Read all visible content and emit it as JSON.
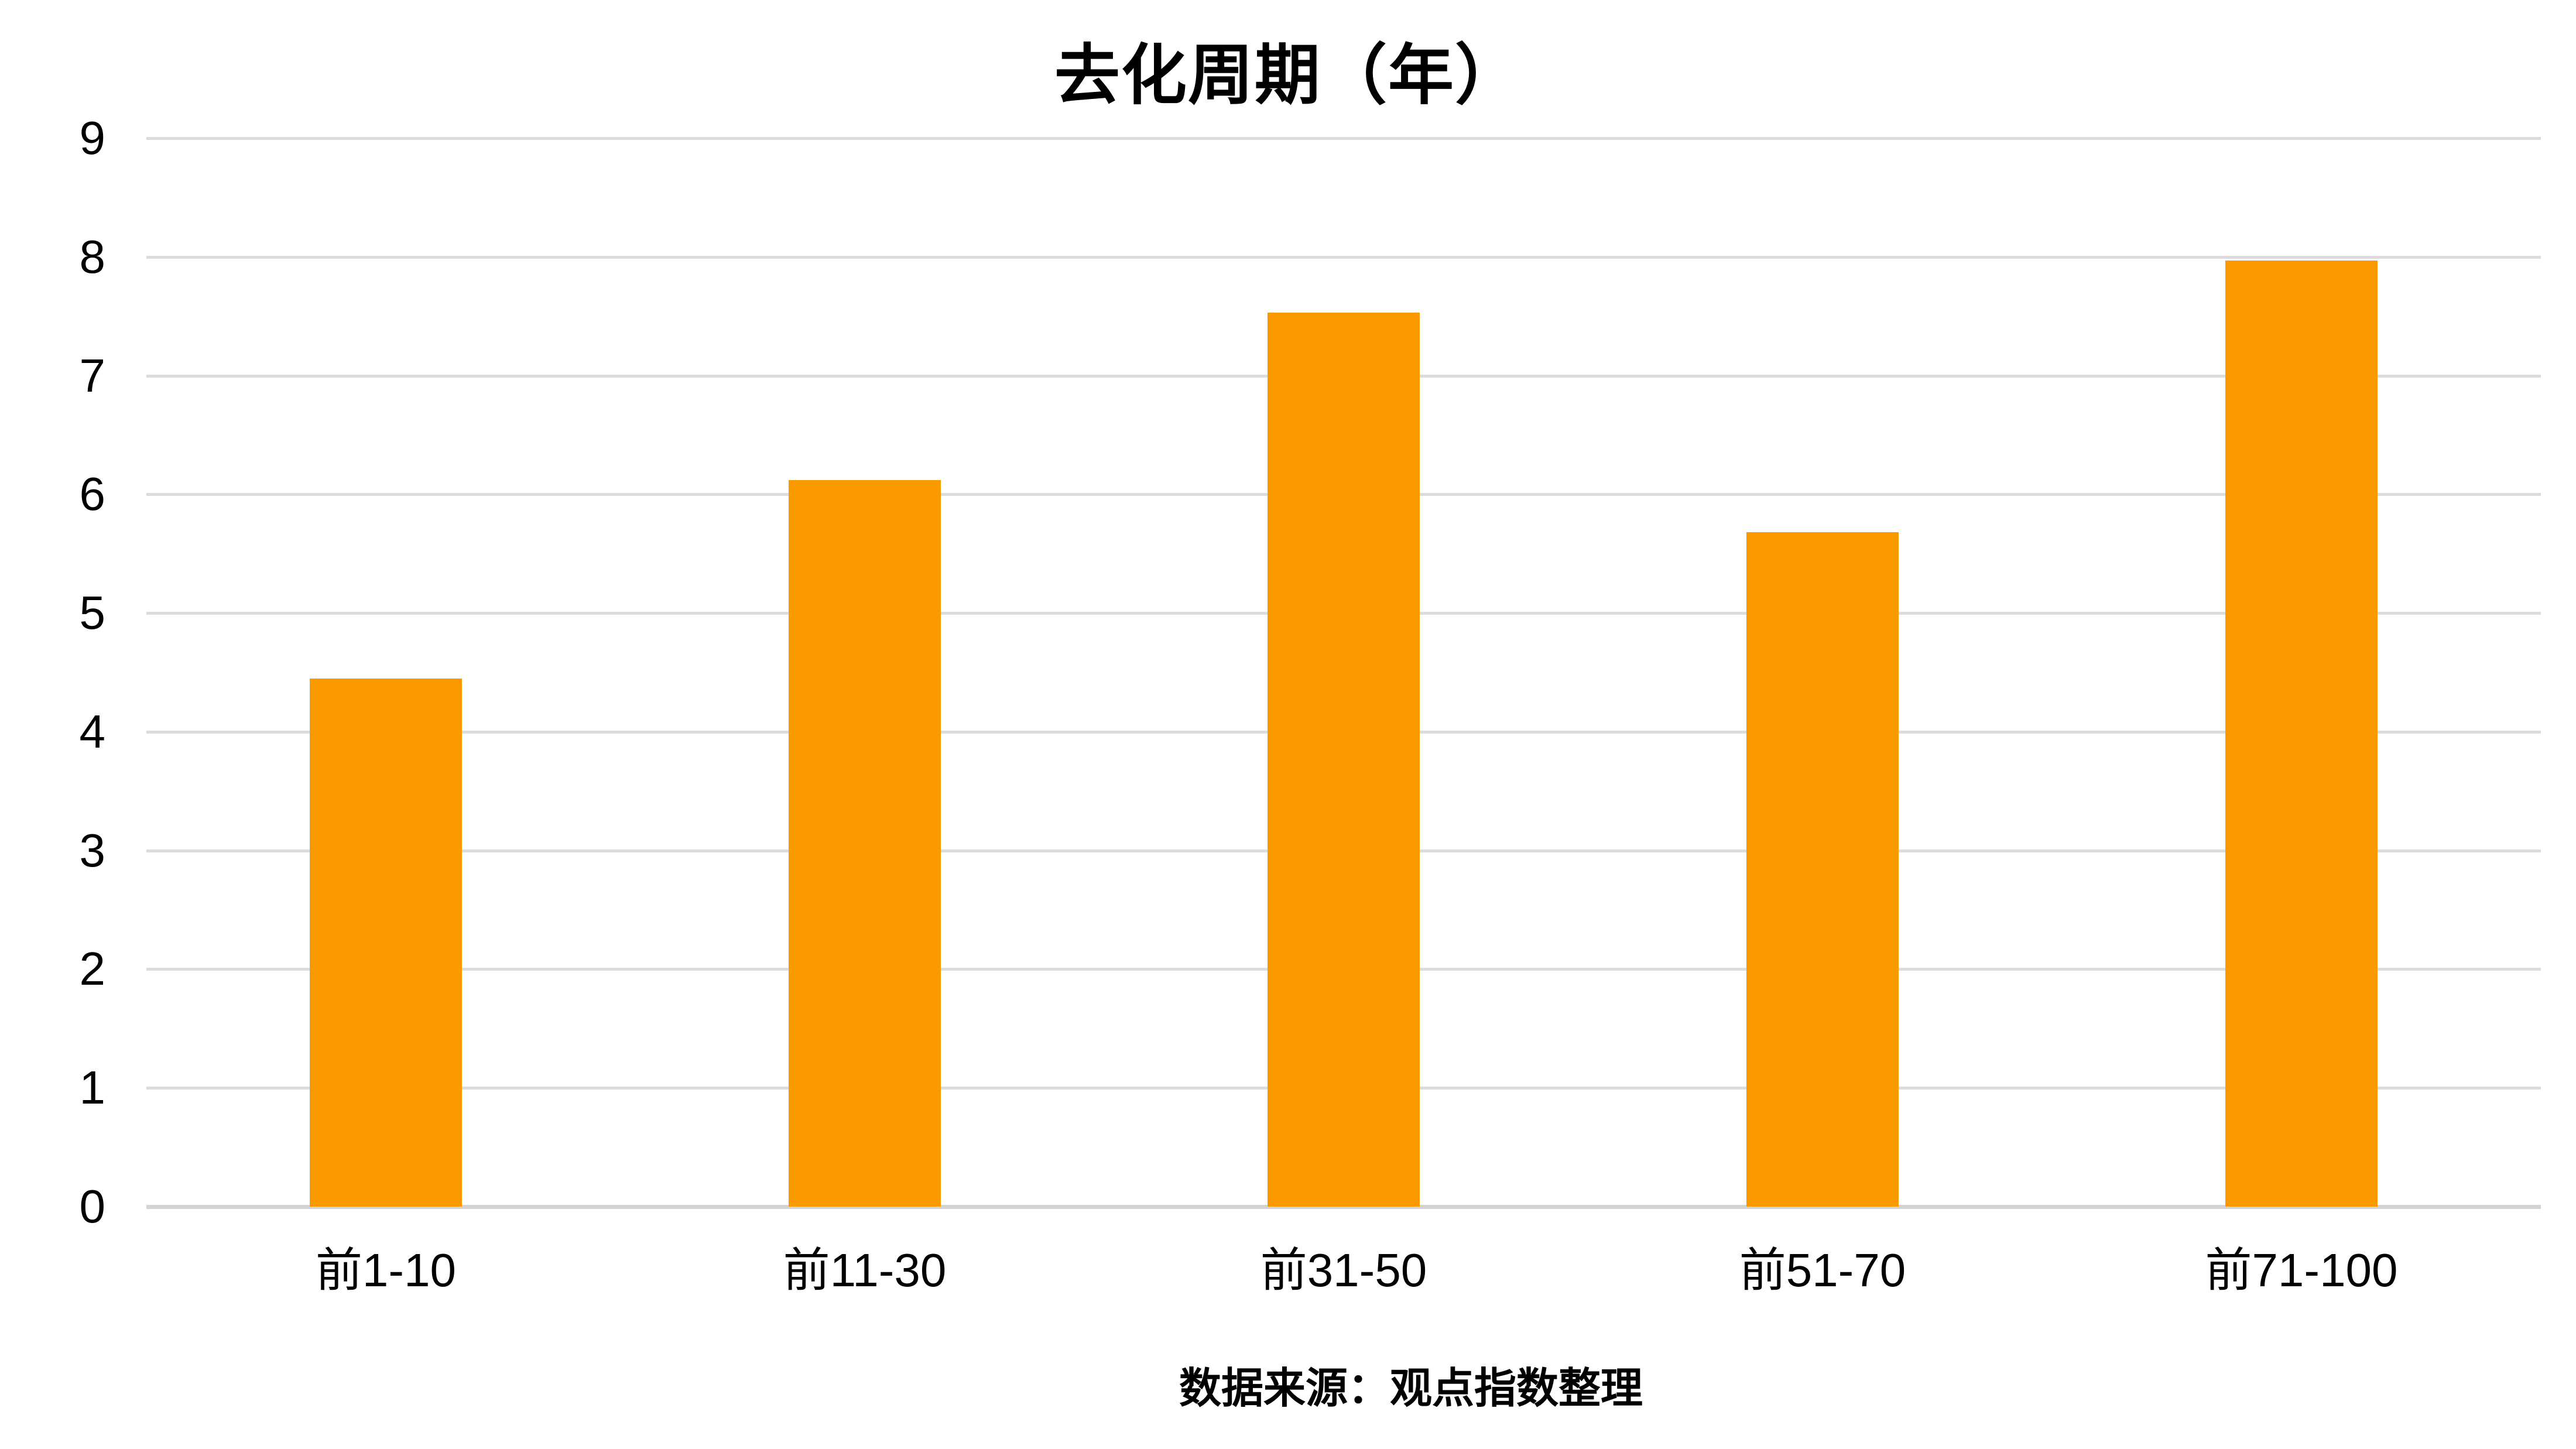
{
  "title": "去化周期（年）",
  "source_note": "数据来源：观点指数整理",
  "colors": {
    "bar": "#FB9A00",
    "gridline": "#DCDCDC",
    "baseline": "#D3D3D3",
    "text": "#000000",
    "background": "#FFFFFF"
  },
  "chart_data": {
    "type": "bar",
    "title": "去化周期（年）",
    "categories": [
      "前1-10",
      "前11-30",
      "前31-50",
      "前51-70",
      "前71-100"
    ],
    "values": [
      4.45,
      6.12,
      7.53,
      5.68,
      7.97
    ],
    "xlabel": "",
    "ylabel": "",
    "ylim": [
      0,
      9
    ],
    "y_ticks": [
      0,
      1,
      2,
      3,
      4,
      5,
      6,
      7,
      8,
      9
    ],
    "grid": true,
    "legend_position": "none",
    "bar_color": "#FB9A00",
    "source_note": "数据来源：观点指数整理"
  }
}
